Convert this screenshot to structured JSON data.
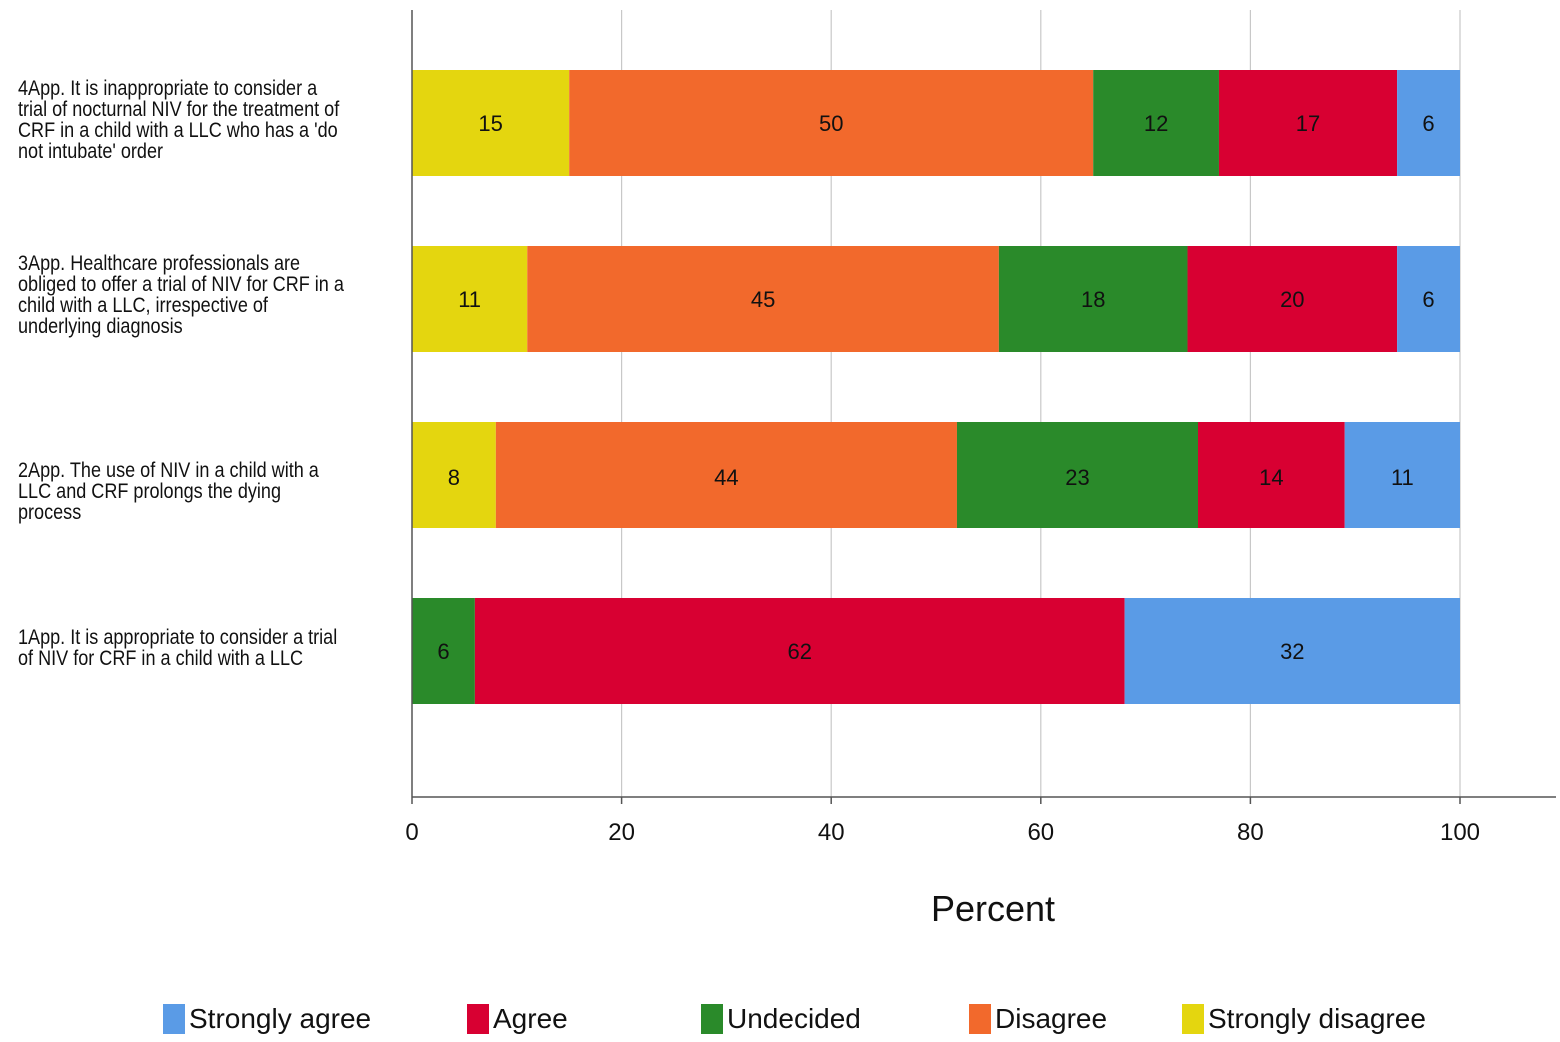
{
  "chart_data": {
    "type": "bar",
    "orientation": "horizontal",
    "stacked": true,
    "xlabel": "Percent",
    "xlim": [
      0,
      110
    ],
    "xticks": [
      0,
      20,
      40,
      60,
      80,
      100
    ],
    "grid": "vertical",
    "legend_position": "bottom",
    "categories": [
      "4App. It is inappropriate to consider a trial of nocturnal NIV for the treatment of CRF in a child with a LLC who has a 'do not intubate' order",
      "3App. Healthcare professionals are obliged to offer a trial of NIV for CRF in a child with a LLC, irrespective of underlying diagnosis",
      "2App. The use of NIV in a child with a LLC and CRF prolongs the dying process",
      "1App. It is appropriate to consider a trial of NIV for CRF in a child with a LLC"
    ],
    "series": [
      {
        "name": "Strongly disagree",
        "color": "#e4d60f",
        "values": [
          15,
          11,
          8,
          0
        ]
      },
      {
        "name": "Disagree",
        "color": "#f2692c",
        "values": [
          50,
          45,
          44,
          0
        ]
      },
      {
        "name": "Undecided",
        "color": "#2a8a2a",
        "values": [
          12,
          18,
          23,
          6
        ]
      },
      {
        "name": "Agree",
        "color": "#d80032",
        "values": [
          17,
          20,
          14,
          62
        ]
      },
      {
        "name": "Strongly agree",
        "color": "#5a9be6",
        "values": [
          6,
          6,
          11,
          32
        ]
      }
    ],
    "segment_labels": [
      [
        "15",
        "50",
        "12",
        "17",
        "6"
      ],
      [
        "11",
        "45",
        "18",
        "20",
        "6"
      ],
      [
        "8",
        "44",
        "23",
        "14",
        "11"
      ],
      [
        "",
        "",
        "6",
        "62",
        "32"
      ]
    ]
  },
  "legend": [
    {
      "label": "Strongly agree",
      "color": "#5a9be6"
    },
    {
      "label": "Agree",
      "color": "#d80032"
    },
    {
      "label": "Undecided",
      "color": "#2a8a2a"
    },
    {
      "label": "Disagree",
      "color": "#f2692c"
    },
    {
      "label": "Strongly disagree",
      "color": "#e4d60f"
    }
  ]
}
